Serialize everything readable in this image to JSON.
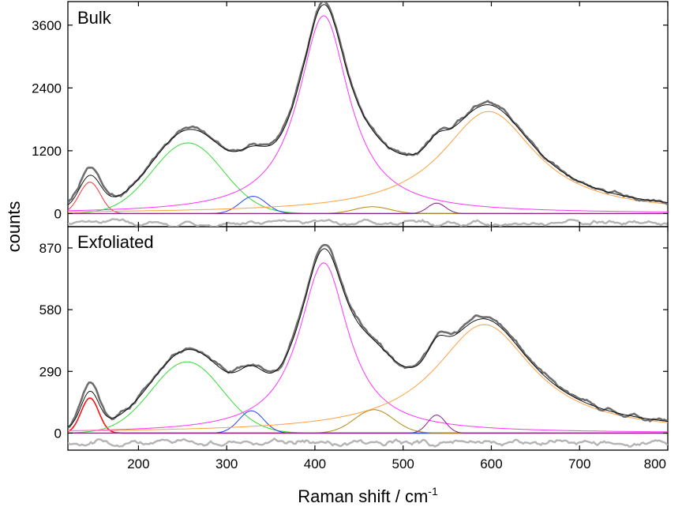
{
  "chart_data": [
    {
      "type": "line",
      "panel": "Bulk",
      "panel_label": "Bulk",
      "xlabel": "Raman shift / cm",
      "xlabel_superscript": "-1",
      "ylabel": "counts",
      "xlim": [
        120,
        800
      ],
      "ylim": [
        -250,
        4050
      ],
      "x_ticks": [
        200,
        300,
        400,
        500,
        600,
        700,
        800
      ],
      "y_ticks": [
        0,
        1200,
        2400,
        3600
      ],
      "y_tick_labels": [
        "0",
        "1200",
        "2400",
        "3600"
      ],
      "peaks": [
        {
          "center": 145,
          "height": 600,
          "width": 12,
          "color": "#ff3030",
          "shape": "gauss",
          "stroke": 1
        },
        {
          "center": 256,
          "height": 1350,
          "width": 40,
          "color": "#33dd33",
          "shape": "gauss",
          "stroke": 1
        },
        {
          "center": 330,
          "height": 330,
          "width": 15,
          "color": "#2040ff",
          "shape": "gauss",
          "stroke": 1
        },
        {
          "center": 410,
          "height": 3780,
          "width": 35,
          "color": "#ff33ff",
          "shape": "lorentz",
          "stroke": 1
        },
        {
          "center": 465,
          "height": 130,
          "width": 20,
          "color": "#b8860b",
          "shape": "gauss",
          "stroke": 1
        },
        {
          "center": 538,
          "height": 200,
          "width": 10,
          "color": "#8b1a8b",
          "shape": "gauss",
          "stroke": 1
        },
        {
          "center": 597,
          "height": 1950,
          "width": 65,
          "color": "#ffa040",
          "shape": "lorentz",
          "stroke": 1
        }
      ],
      "fit_color": "#000000",
      "data_color": "#6e6e6e",
      "residual_color": "#b4b4b4",
      "residual_offset": -180,
      "noise_amplitude": 45,
      "residual_amplitude": 70,
      "data_scale": 1.015,
      "data_bump": {
        "center": 145,
        "height": 120,
        "width": 14
      },
      "seed": 7
    },
    {
      "type": "line",
      "panel": "Exfoliated",
      "panel_label": "Exfoliated",
      "xlabel": "Raman shift / cm",
      "xlabel_superscript": "-1",
      "ylabel": "counts",
      "xlim": [
        120,
        800
      ],
      "ylim": [
        -80,
        970
      ],
      "x_ticks": [
        200,
        300,
        400,
        500,
        600,
        700,
        800
      ],
      "x_tick_labels": [
        "200",
        "300",
        "400",
        "500",
        "600",
        "700",
        "800"
      ],
      "y_ticks": [
        0,
        290,
        580,
        870
      ],
      "y_tick_labels": [
        "0",
        "290",
        "580",
        "870"
      ],
      "peaks": [
        {
          "center": 145,
          "height": 165,
          "width": 10,
          "color": "#ff1010",
          "shape": "gauss",
          "stroke": 1.6
        },
        {
          "center": 255,
          "height": 335,
          "width": 40,
          "color": "#33dd33",
          "shape": "gauss",
          "stroke": 1
        },
        {
          "center": 328,
          "height": 105,
          "width": 14,
          "color": "#2040ff",
          "shape": "gauss",
          "stroke": 1
        },
        {
          "center": 410,
          "height": 800,
          "width": 34,
          "color": "#ff33ff",
          "shape": "lorentz",
          "stroke": 1
        },
        {
          "center": 467,
          "height": 110,
          "width": 22,
          "color": "#b8860b",
          "shape": "gauss",
          "stroke": 1
        },
        {
          "center": 538,
          "height": 85,
          "width": 10,
          "color": "#8b1a8b",
          "shape": "gauss",
          "stroke": 1
        },
        {
          "center": 592,
          "height": 510,
          "width": 68,
          "color": "#ffa040",
          "shape": "lorentz",
          "stroke": 1
        }
      ],
      "fit_color": "#000000",
      "data_color": "#6e6e6e",
      "residual_color": "#b4b4b4",
      "residual_offset": -45,
      "noise_amplitude": 12,
      "residual_amplitude": 22,
      "data_scale": 1.02,
      "data_bump": {
        "center": 145,
        "height": 40,
        "width": 12
      },
      "seed": 11
    }
  ]
}
